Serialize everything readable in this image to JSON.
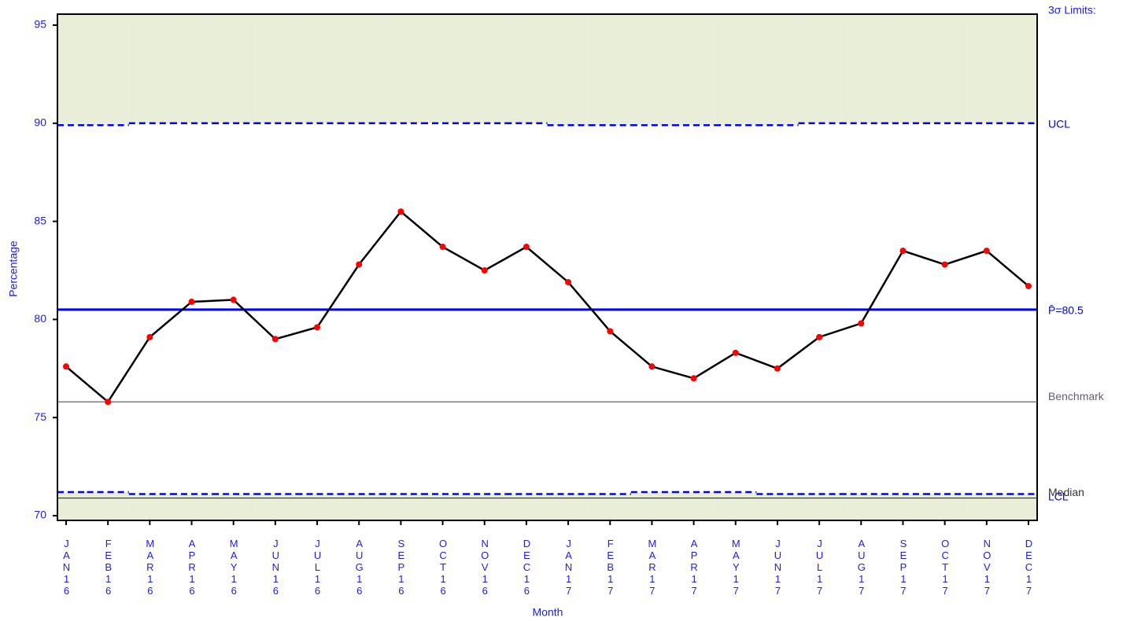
{
  "chart_data": {
    "type": "line",
    "x_label": "Month",
    "y_label": "Percentage",
    "limits_title": "3σ Limits:",
    "categories": [
      "JAN16",
      "FEB16",
      "MAR16",
      "APR16",
      "MAY16",
      "JUN16",
      "JUL16",
      "AUG16",
      "SEP16",
      "OCT16",
      "NOV16",
      "DEC16",
      "JAN17",
      "FEB17",
      "MAR17",
      "APR17",
      "MAY17",
      "JUN17",
      "JUL17",
      "AUG17",
      "SEP17",
      "OCT17",
      "NOV17",
      "DEC17"
    ],
    "series": [
      {
        "name": "Percentage",
        "color": "#000000",
        "marker_color": "#ff0000",
        "values": [
          77.6,
          75.8,
          79.1,
          80.9,
          81.0,
          79.0,
          79.6,
          82.8,
          85.5,
          83.7,
          82.5,
          83.7,
          81.9,
          79.4,
          77.6,
          77.0,
          78.3,
          77.5,
          79.1,
          79.8,
          83.5,
          82.8,
          83.5,
          81.7
        ]
      }
    ],
    "ucl": {
      "name": "UCL",
      "color": "#0000ff",
      "values": [
        89.9,
        89.9,
        90.0,
        90.0,
        90.0,
        90.0,
        90.0,
        90.0,
        90.0,
        90.0,
        90.0,
        90.0,
        89.9,
        89.9,
        89.9,
        89.9,
        89.9,
        89.9,
        90.0,
        90.0,
        90.0,
        90.0,
        90.0,
        90.0
      ]
    },
    "lcl": {
      "name": "LCL",
      "color": "#0000ff",
      "values": [
        71.2,
        71.2,
        71.1,
        71.1,
        71.1,
        71.1,
        71.1,
        71.1,
        71.1,
        71.1,
        71.1,
        71.1,
        71.1,
        71.1,
        71.2,
        71.2,
        71.2,
        71.1,
        71.1,
        71.1,
        71.1,
        71.1,
        71.1,
        71.1
      ]
    },
    "center": {
      "name": "P̄=80.5",
      "value": 80.5,
      "color": "#0000ff"
    },
    "benchmark": {
      "name": "Benchmark",
      "value": 75.8,
      "color": "#6b5a70"
    },
    "median": {
      "name": "Median",
      "value": 70.9,
      "color": "#333333"
    },
    "shade_color": "#e8eed8",
    "ylim": [
      69.76,
      95.56
    ],
    "yticks": [
      70,
      75,
      80,
      85,
      90,
      95
    ]
  }
}
